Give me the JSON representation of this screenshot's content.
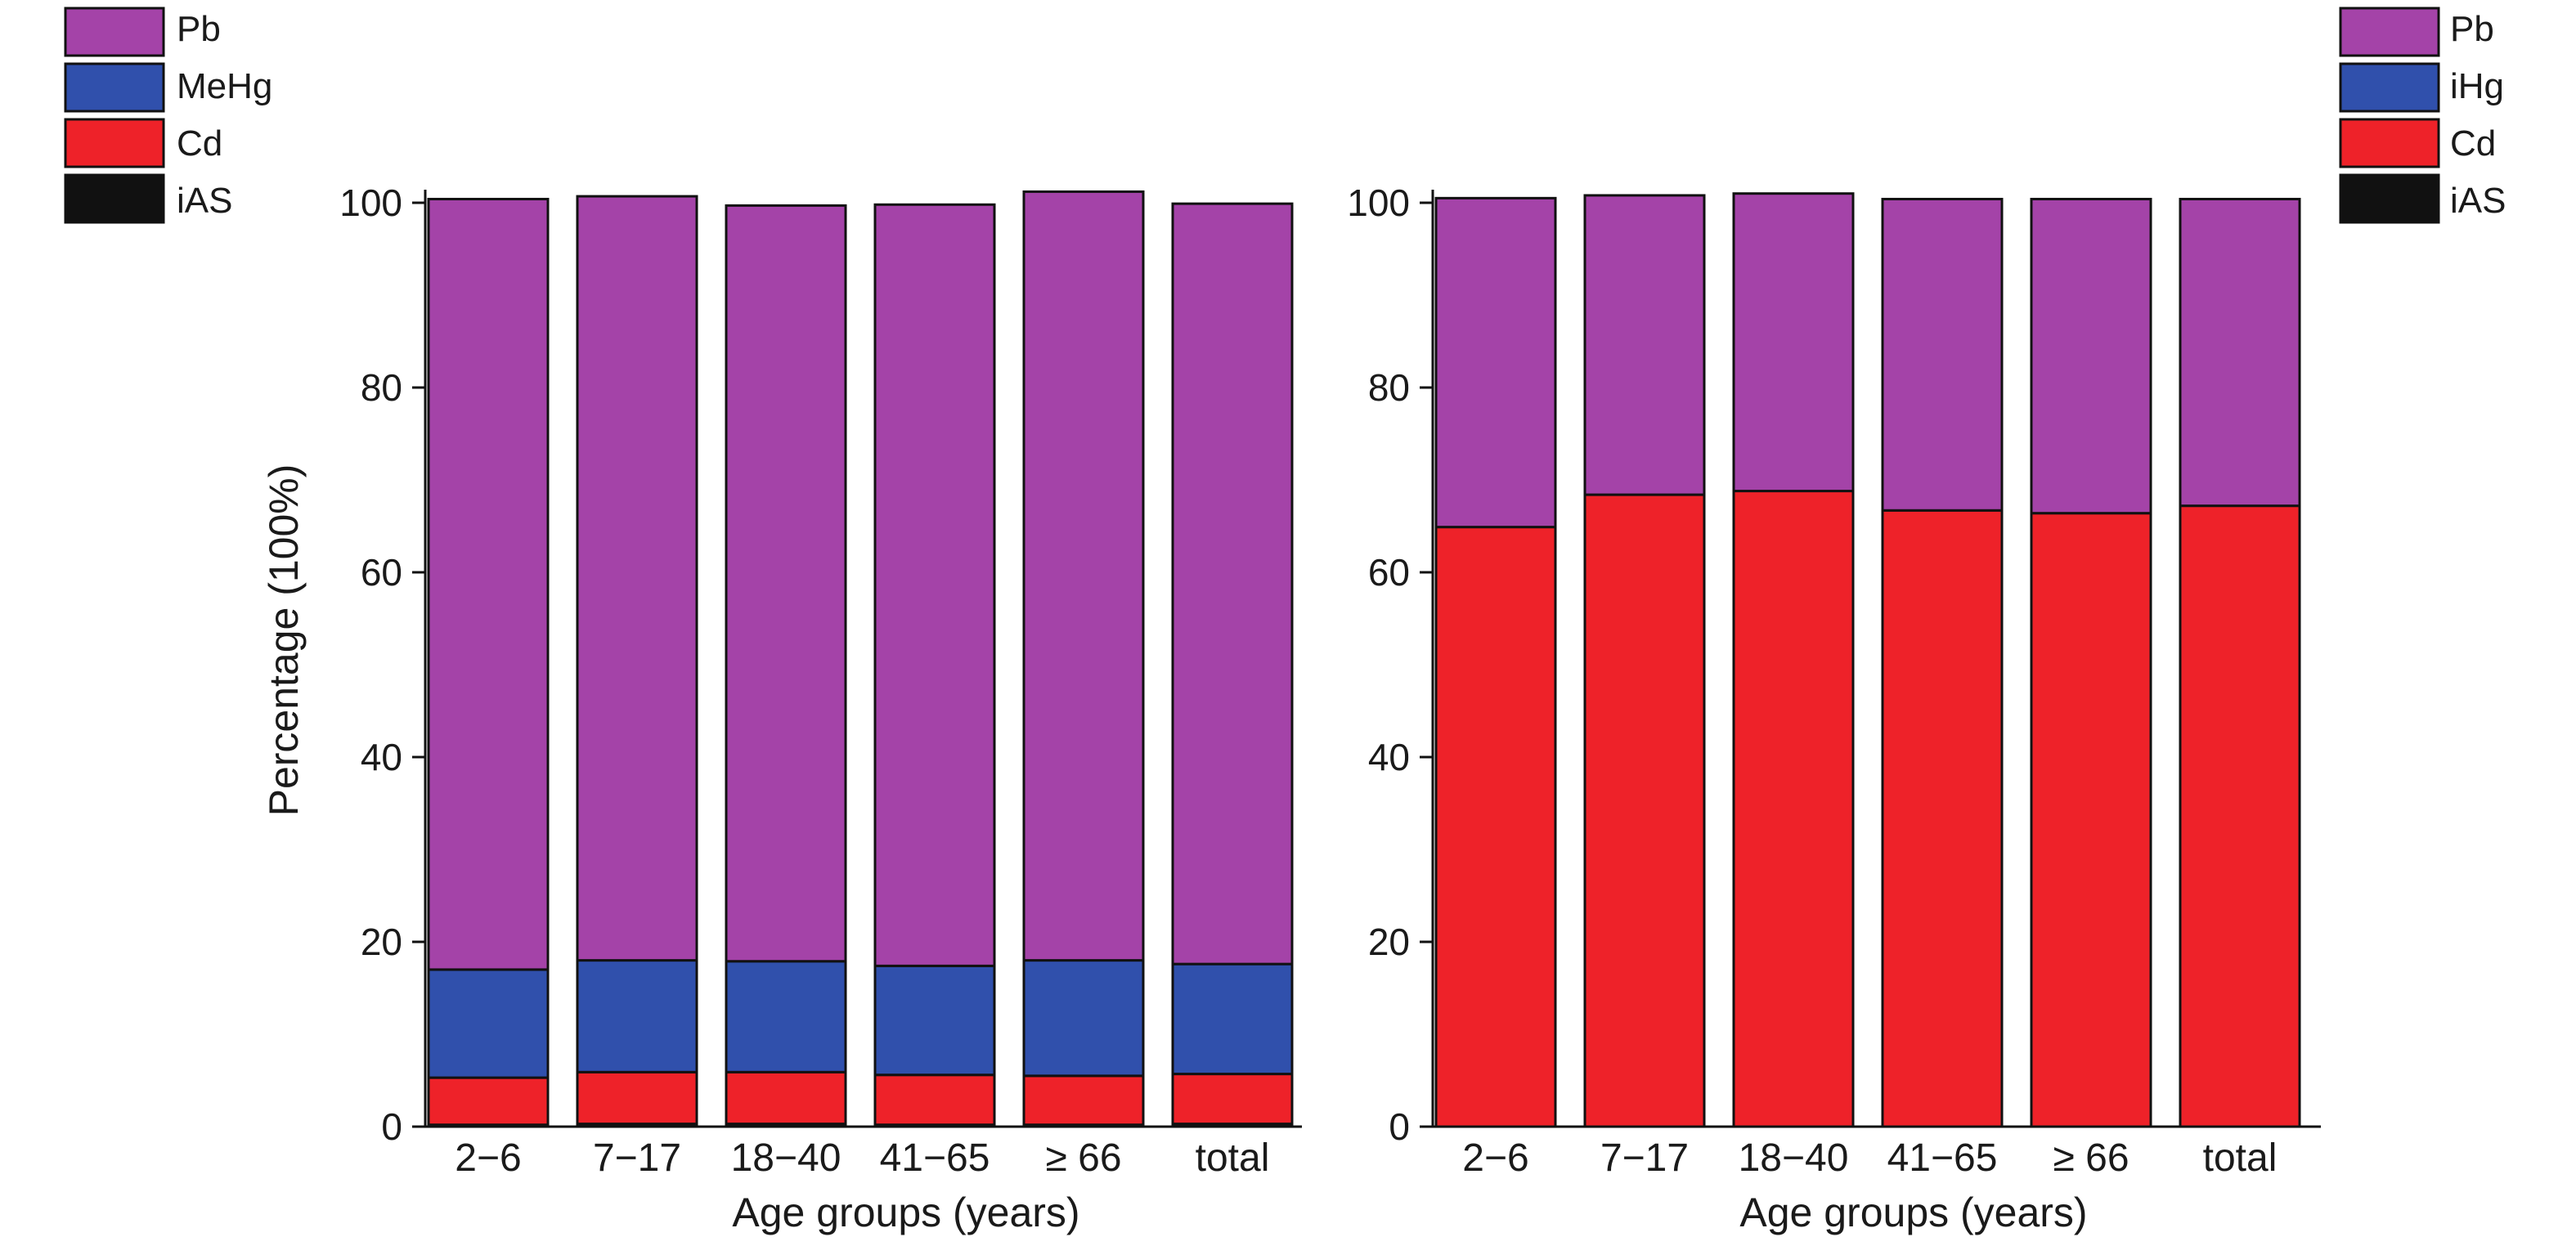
{
  "colors": {
    "Pb": "#a443a8",
    "MeHg": "#3050ac",
    "iHg": "#3050ac",
    "Cd": "#ee2229",
    "iAS": "#111111"
  },
  "chart_data": [
    {
      "type": "bar",
      "stacked": true,
      "categories": [
        "2−6",
        "7−17",
        "18−40",
        "41−65",
        "≥ 66",
        "total"
      ],
      "xlabel": "Age groups (years)",
      "ylabel": "Percentage (100%)",
      "ylim": [
        0,
        100
      ],
      "yticks": [
        "0",
        "20",
        "40",
        "60",
        "80",
        "100"
      ],
      "legend": {
        "position": "top-left",
        "entries": [
          "Pb",
          "MeHg",
          "Cd",
          "iAS"
        ]
      },
      "series": [
        {
          "name": "iAS",
          "values": [
            0.2,
            0.3,
            0.3,
            0.2,
            0.2,
            0.3
          ]
        },
        {
          "name": "Cd",
          "values": [
            5.1,
            5.6,
            5.6,
            5.4,
            5.3,
            5.4
          ]
        },
        {
          "name": "MeHg",
          "values": [
            11.7,
            12.1,
            12.0,
            11.8,
            12.5,
            11.9
          ]
        },
        {
          "name": "Pb",
          "values": [
            83.4,
            82.7,
            81.8,
            82.4,
            83.2,
            82.3
          ]
        }
      ]
    },
    {
      "type": "bar",
      "stacked": true,
      "categories": [
        "2−6",
        "7−17",
        "18−40",
        "41−65",
        "≥ 66",
        "total"
      ],
      "xlabel": "Age groups (years)",
      "ylabel": "",
      "ylim": [
        0,
        100
      ],
      "yticks": [
        "0",
        "20",
        "40",
        "60",
        "80",
        "100"
      ],
      "legend": {
        "position": "top-right",
        "entries": [
          "Pb",
          "iHg",
          "Cd",
          "iAS"
        ]
      },
      "series": [
        {
          "name": "iAS",
          "values": [
            0,
            0,
            0,
            0,
            0,
            0
          ]
        },
        {
          "name": "iHg",
          "values": [
            0,
            0,
            0,
            0,
            0,
            0
          ]
        },
        {
          "name": "Cd",
          "values": [
            64.9,
            68.4,
            68.8,
            66.7,
            66.4,
            67.2
          ]
        },
        {
          "name": "Pb",
          "values": [
            35.6,
            32.4,
            32.2,
            33.7,
            34.0,
            33.2
          ]
        }
      ]
    }
  ]
}
